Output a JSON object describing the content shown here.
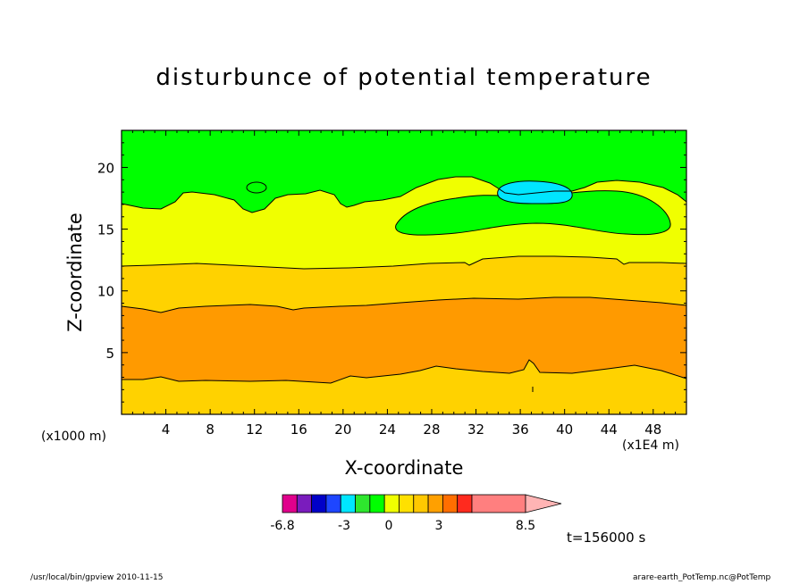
{
  "chart_data": {
    "type": "heatmap",
    "title": "disturbunce of potential temperature",
    "xlabel": "X-coordinate",
    "ylabel": "Z-coordinate",
    "x_unit": "(x1000 m)",
    "z_unit": "(x1E4 m)",
    "xlim": [
      0,
      51
    ],
    "ylim": [
      0,
      23
    ],
    "x_ticks": [
      4,
      8,
      12,
      16,
      20,
      24,
      28,
      32,
      36,
      40,
      44,
      48
    ],
    "y_ticks": [
      5,
      10,
      15,
      20
    ],
    "colorbar": {
      "levels": [
        -6.8,
        -3,
        0,
        3,
        8.5
      ],
      "labels": [
        "-6.8",
        "-3",
        "0",
        "3",
        "8.5"
      ],
      "colors": [
        "#e0008c",
        "#7a1cbd",
        "#0000c8",
        "#1e46ff",
        "#00e6ff",
        "#2ee62e",
        "#00ff00",
        "#f0ff00",
        "#ffe000",
        "#ffc800",
        "#ffa000",
        "#ff6e00",
        "#ff2a1e",
        "#ff7f7f",
        "#ffb4b4"
      ],
      "extend": "max"
    },
    "regions": [
      {
        "range": "0 to 1",
        "color": "#00ff00",
        "z_range": [
          16.5,
          23
        ]
      },
      {
        "range": "1 to 2",
        "color": "#f0ff00",
        "z_range": [
          12,
          17
        ]
      },
      {
        "range": "2 to 3",
        "color": "#ffd200",
        "z_range": [
          8.5,
          12
        ]
      },
      {
        "range": "3 to 4",
        "color": "#ff9a00",
        "z_range": [
          2.8,
          9.2
        ]
      },
      {
        "range": "2 to 3",
        "color": "#ffd200",
        "z_range": [
          0,
          3
        ]
      },
      {
        "range": "-1 to 0",
        "color": "#00e6ff",
        "z_range": [
          17.2,
          18.8
        ]
      }
    ],
    "time_label": "t=156000 s",
    "grid": false
  },
  "footer": {
    "left": "/usr/local/bin/gpview   2010-11-15",
    "right": "arare-earth_PotTemp.nc@PotTemp"
  }
}
